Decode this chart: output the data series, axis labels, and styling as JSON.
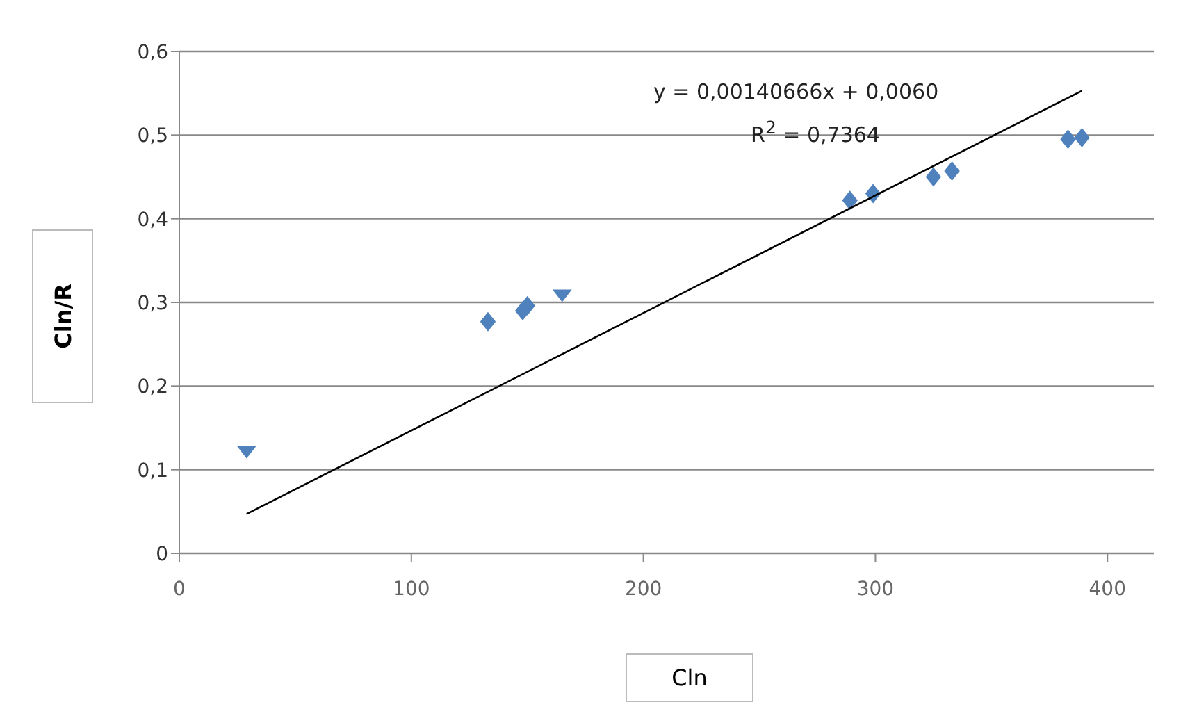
{
  "chart_data": {
    "type": "scatter",
    "xlabel": "Cln",
    "ylabel": "Cln/R",
    "annotations": [
      "y = 0,00140666x + 0,0060",
      "R$^{2}$ = 0,7364"
    ],
    "series": [
      {
        "color": "#4f81bd",
        "marker": "diamond",
        "x": [
          133,
          148,
          150,
          289,
          299,
          325,
          333,
          383,
          389
        ],
        "values": [
          0.277,
          0.29,
          0.296,
          0.422,
          0.43,
          0.45,
          0.457,
          0.495,
          0.497
        ]
      },
      {
        "color": "#4f81bd",
        "marker": "triangle",
        "x": [
          29,
          165
        ],
        "values": [
          0.12,
          0.307
        ]
      },
      {
        "type": "line",
        "color": "#000000",
        "marker": "none",
        "x": [
          29,
          389
        ],
        "values": [
          0.047,
          0.553
        ]
      }
    ],
    "xlim": [
      0,
      420
    ],
    "xticks": [
      0,
      100,
      200,
      300,
      400
    ],
    "ylim": [
      0,
      0.6
    ],
    "yticks": [
      {
        "value": 0,
        "label": "0"
      },
      {
        "value": 0.1,
        "label": "0,1"
      },
      {
        "value": 0.2,
        "label": "0,2"
      },
      {
        "value": 0.3,
        "label": "0,3"
      },
      {
        "value": 0.4,
        "label": "0,4"
      },
      {
        "value": 0.5,
        "label": "0,5"
      },
      {
        "value": 0.6,
        "label": "0,6"
      }
    ],
    "grid": "y"
  }
}
